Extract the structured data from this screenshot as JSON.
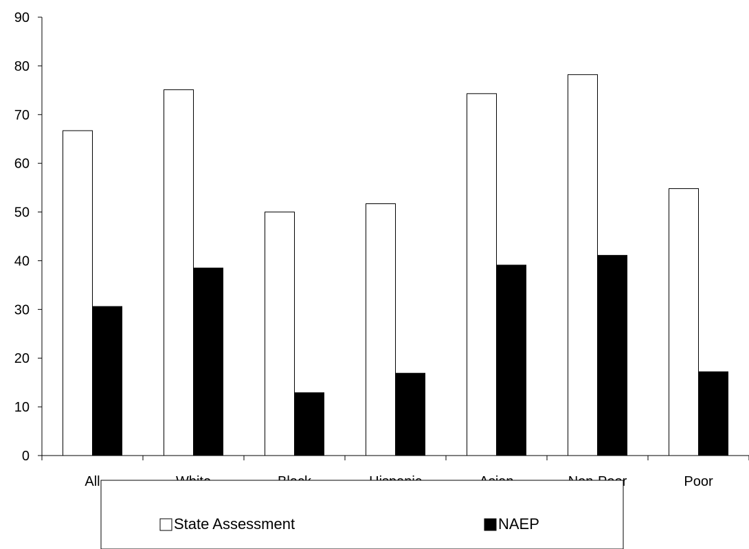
{
  "chart_data": {
    "type": "bar",
    "categories": [
      "All",
      "White",
      "Black",
      "Hispanic",
      "Asian",
      "Non-Poor",
      "Poor"
    ],
    "series": [
      {
        "name": "State Assessment",
        "values": [
          66.7,
          75.1,
          50.0,
          51.7,
          74.3,
          78.2,
          54.8
        ],
        "color": "#ffffff"
      },
      {
        "name": "NAEP",
        "values": [
          30.6,
          38.5,
          12.9,
          16.9,
          39.1,
          41.1,
          17.2
        ],
        "color": "#000000"
      }
    ],
    "yticks": [
      "0",
      "10",
      "20",
      "30",
      "40",
      "50",
      "60",
      "70",
      "80",
      "90"
    ],
    "ylim": [
      0,
      90
    ],
    "grid": false,
    "legend_position": "bottom"
  }
}
